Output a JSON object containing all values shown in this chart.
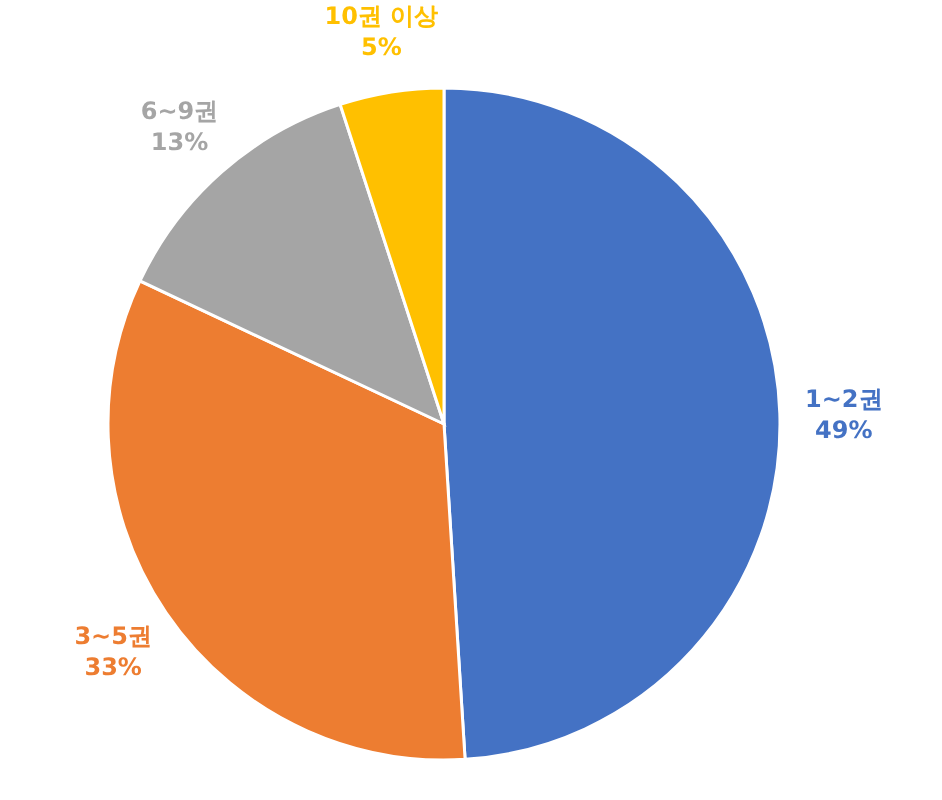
{
  "chart_data": {
    "type": "pie",
    "categories": [
      "1~2권",
      "3~5권",
      "6~9권",
      "10권 이상"
    ],
    "values": [
      49,
      33,
      13,
      5
    ],
    "colors": [
      "#4472c4",
      "#ed7d31",
      "#a5a5a5",
      "#ffc000"
    ],
    "value_labels": [
      "49%",
      "33%",
      "13%",
      "5%"
    ]
  }
}
